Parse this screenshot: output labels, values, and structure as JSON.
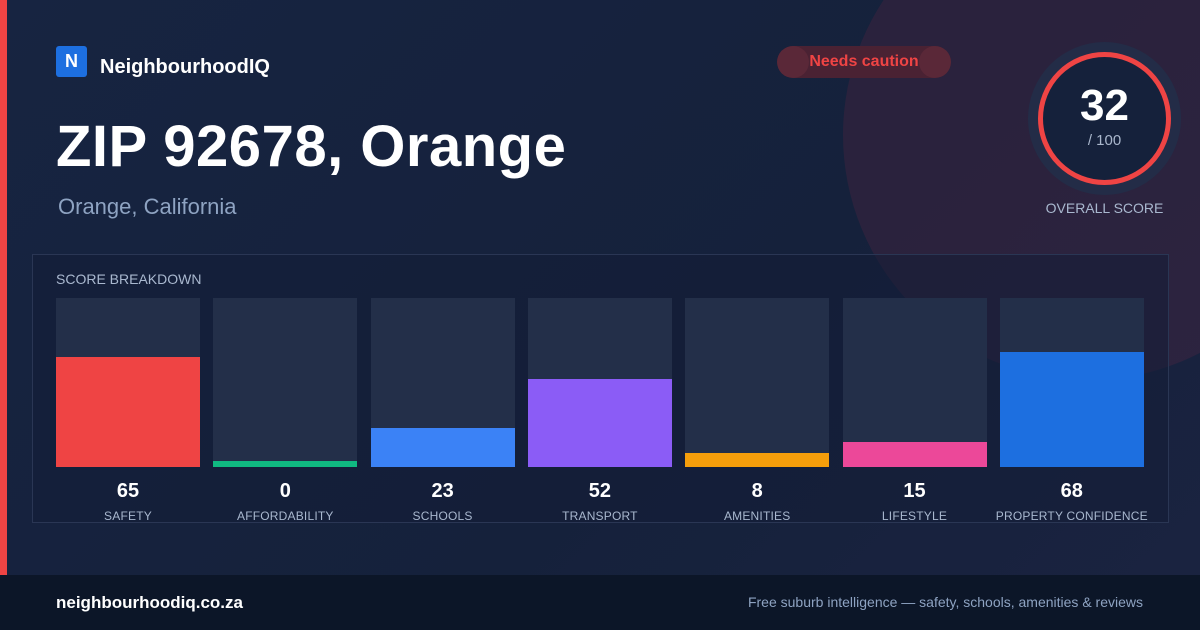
{
  "brand": {
    "logo_letter": "N",
    "name": "NeighbourhoodIQ",
    "accent_color": "#ef4444"
  },
  "status_badge": {
    "label": "Needs caution",
    "color": "#ef4444"
  },
  "location": {
    "title": "ZIP 92678, Orange",
    "subtitle": "Orange, California"
  },
  "overall": {
    "score": "32",
    "max": "/ 100",
    "label": "OVERALL SCORE",
    "score_value": 32,
    "max_value": 100,
    "ring_color": "#ef4444"
  },
  "breakdown_title": "SCORE BREAKDOWN",
  "chart_data": {
    "type": "bar",
    "title": "SCORE BREAKDOWN",
    "categories": [
      "SAFETY",
      "AFFORDABILITY",
      "SCHOOLS",
      "TRANSPORT",
      "AMENITIES",
      "LIFESTYLE",
      "PROPERTY CONFIDENCE"
    ],
    "values": [
      65,
      0,
      23,
      52,
      8,
      15,
      68
    ],
    "colors": [
      "#ef4444",
      "#10b981",
      "#3b82f6",
      "#8b5cf6",
      "#f59e0b",
      "#ec4899",
      "#1d6fe0"
    ],
    "ylim": [
      0,
      100
    ],
    "grid": false,
    "legend": "none"
  },
  "footer": {
    "domain": "neighbourhoodiq.co.za",
    "tagline": "Free suburb intelligence — safety, schools, amenities & reviews"
  }
}
